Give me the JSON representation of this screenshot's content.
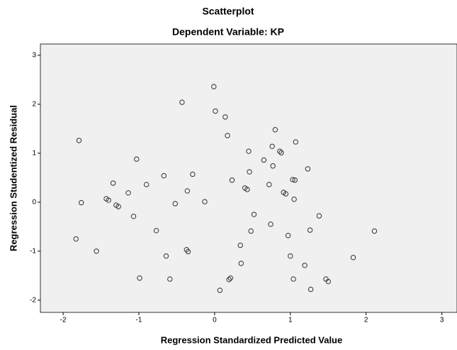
{
  "chart_data": {
    "type": "scatter",
    "title": "Scatterplot",
    "subtitle": "Dependent Variable: KP",
    "x_label": "Regression Standardized Predicted Value",
    "y_label": "Regression Studentized Residual",
    "xlim": [
      -2.3,
      3.2
    ],
    "ylim": [
      -2.25,
      3.23
    ],
    "xticks": [
      -2,
      -1,
      0,
      1,
      2,
      3
    ],
    "yticks": [
      -2,
      -1,
      0,
      1,
      2,
      3
    ],
    "series": [
      {
        "color": "#333333",
        "x": [
          -1.79,
          -1.76,
          -1.83,
          -1.56,
          -1.43,
          -1.4,
          -1.34,
          -1.3,
          -1.27,
          -1.14,
          -1.07,
          -1.03,
          -0.99,
          -0.9,
          -0.77,
          -0.67,
          -0.64,
          -0.59,
          -0.52,
          -0.43,
          -0.37,
          -0.35,
          -0.36,
          -0.29,
          -0.13,
          -0.01,
          0.01,
          0.07,
          0.14,
          0.17,
          0.19,
          0.21,
          0.23,
          0.34,
          0.35,
          0.4,
          0.43,
          0.45,
          0.46,
          0.48,
          0.52,
          0.65,
          0.72,
          0.74,
          0.76,
          0.77,
          0.8,
          0.86,
          0.88,
          0.91,
          0.94,
          0.97,
          1.0,
          1.03,
          1.06,
          1.05,
          1.04,
          1.07,
          1.19,
          1.23,
          1.26,
          1.27,
          1.38,
          1.47,
          1.5,
          1.83,
          2.11
        ],
        "values": [
          1.26,
          -0.01,
          -0.75,
          -1.0,
          0.07,
          0.04,
          0.39,
          -0.06,
          -0.09,
          0.19,
          -0.29,
          0.88,
          -1.55,
          0.36,
          -0.58,
          0.54,
          -1.1,
          -1.57,
          -0.03,
          2.04,
          -0.97,
          -1.01,
          0.23,
          0.57,
          0.01,
          2.36,
          1.86,
          -1.8,
          1.74,
          1.36,
          -1.58,
          -1.55,
          0.45,
          -0.88,
          -1.25,
          0.29,
          0.26,
          1.04,
          0.62,
          -0.59,
          -0.25,
          0.86,
          0.36,
          -0.45,
          1.14,
          0.74,
          1.48,
          1.04,
          1.01,
          0.2,
          0.17,
          -0.68,
          -1.1,
          0.46,
          0.45,
          0.06,
          -1.57,
          1.23,
          -1.29,
          0.68,
          -0.57,
          -1.78,
          -0.28,
          -1.57,
          -1.62,
          -1.13,
          -0.59
        ]
      }
    ]
  }
}
